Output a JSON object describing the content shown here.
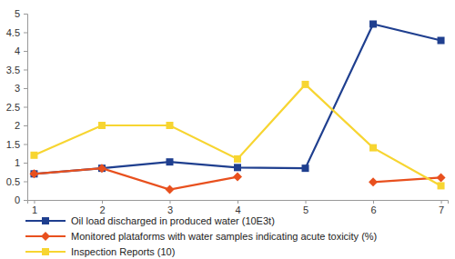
{
  "chart_data": {
    "type": "line",
    "x": [
      1,
      2,
      3,
      4,
      5,
      6,
      7
    ],
    "xlim": [
      0.9,
      7.1
    ],
    "xticks": [
      1,
      2,
      3,
      4,
      5,
      6,
      7
    ],
    "ylim": [
      0,
      5
    ],
    "yticks": [
      0,
      0.5,
      1,
      1.5,
      2,
      2.5,
      3,
      3.5,
      4,
      4.5,
      5
    ],
    "legend": "bottom",
    "series": [
      {
        "name": "Oil load discharged in produced water (10E3t)",
        "color": "#1f3f8f",
        "marker": "square",
        "values": [
          0.7,
          0.85,
          1.02,
          0.87,
          0.85,
          4.72,
          4.28
        ]
      },
      {
        "name": "Monitored plataforms with water samples indicating acute toxicity (%)",
        "color": "#e8501e",
        "marker": "diamond",
        "values": [
          0.7,
          0.85,
          0.28,
          0.62,
          null,
          0.48,
          0.6
        ]
      },
      {
        "name": "Inspection Reports (10)",
        "color": "#f7d531",
        "marker": "square",
        "values": [
          1.2,
          2.0,
          2.0,
          1.1,
          3.1,
          1.4,
          0.38
        ]
      }
    ]
  }
}
